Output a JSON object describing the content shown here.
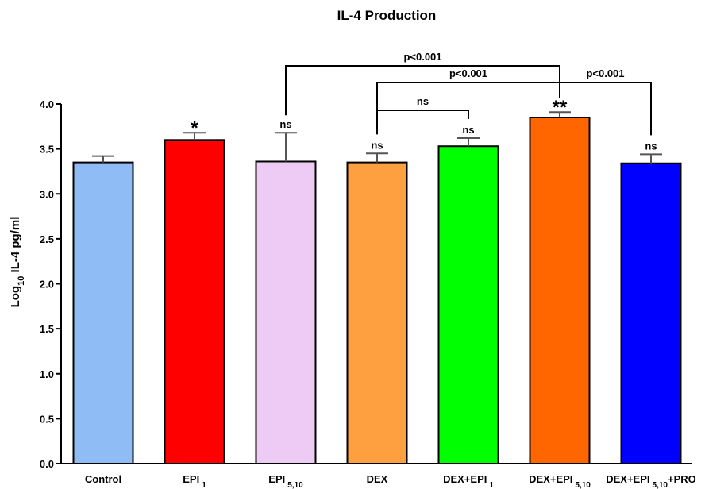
{
  "chart_data": {
    "type": "bar",
    "title": "IL-4 Production",
    "ylabel_main": "Log",
    "ylabel_sub": "10",
    "ylabel_rest": " IL-4 pg/ml",
    "ylim": [
      0,
      4.0
    ],
    "yticks": [
      "0.0",
      "0.5",
      "1.0",
      "1.5",
      "2.0",
      "2.5",
      "3.0",
      "3.5",
      "4.0"
    ],
    "grid": false,
    "categories": [
      {
        "main": "Control",
        "sub": "",
        "tail": ""
      },
      {
        "main": "EPI",
        "sub": "1",
        "tail": ""
      },
      {
        "main": "EPI",
        "sub": "5,10",
        "tail": ""
      },
      {
        "main": "DEX",
        "sub": "",
        "tail": ""
      },
      {
        "main": "DEX+EPI",
        "sub": "1",
        "tail": ""
      },
      {
        "main": "DEX+EPI",
        "sub": "5,10",
        "tail": ""
      },
      {
        "main": "DEX+EPI",
        "sub": "5,10",
        "tail": "+PRO"
      }
    ],
    "values": [
      3.35,
      3.6,
      3.36,
      3.35,
      3.53,
      3.85,
      3.34
    ],
    "errors": [
      0.07,
      0.08,
      0.32,
      0.1,
      0.09,
      0.06,
      0.1
    ],
    "colors": [
      "#8fbcf5",
      "#ff0000",
      "#eecbf5",
      "#ffa040",
      "#00ff00",
      "#ff6600",
      "#0000ff"
    ],
    "bar_annotations": [
      "",
      "*",
      "ns",
      "ns",
      "ns",
      "**",
      "ns"
    ],
    "comparisons": [
      {
        "from": 2,
        "to": 5,
        "label": "p<0.001"
      },
      {
        "from": 3,
        "to": 5,
        "label": "p<0.001"
      },
      {
        "from": 5,
        "to": 6,
        "label": "p<0.001"
      },
      {
        "from": 3,
        "to": 4,
        "label": "ns"
      }
    ]
  }
}
